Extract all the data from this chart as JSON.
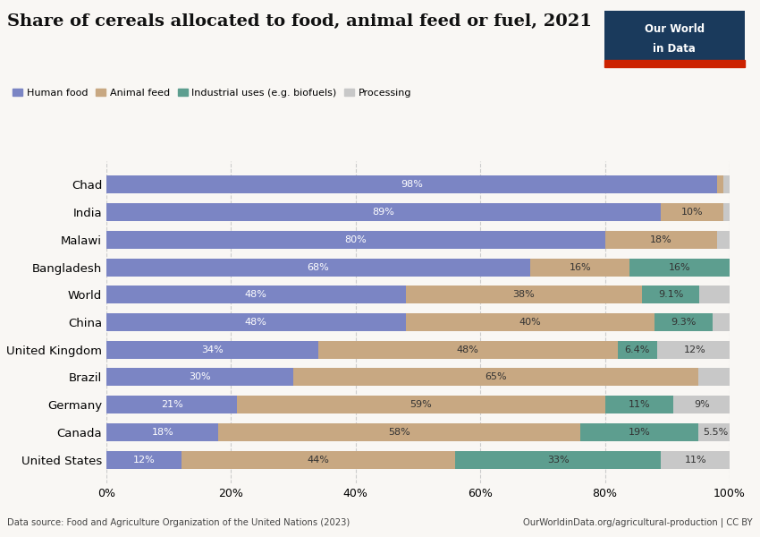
{
  "title": "Share of cereals allocated to food, animal feed or fuel, 2021",
  "categories": [
    "Chad",
    "India",
    "Malawi",
    "Bangladesh",
    "World",
    "China",
    "United Kingdom",
    "Brazil",
    "Germany",
    "Canada",
    "United States"
  ],
  "human_food": [
    98,
    89,
    80,
    68,
    48,
    48,
    34,
    30,
    21,
    18,
    12
  ],
  "animal_feed": [
    1,
    10,
    18,
    16,
    38,
    40,
    48,
    65,
    59,
    58,
    44
  ],
  "industrial": [
    0,
    0,
    0,
    16,
    9.1,
    9.3,
    6.4,
    0,
    11,
    19,
    33
  ],
  "processing": [
    1,
    1,
    2,
    0,
    4.9,
    2.7,
    12,
    5,
    9,
    5.5,
    11
  ],
  "labels_food": [
    "98%",
    "89%",
    "80%",
    "68%",
    "48%",
    "48%",
    "34%",
    "30%",
    "21%",
    "18%",
    "12%"
  ],
  "labels_feed": [
    "",
    "10%",
    "18%",
    "16%",
    "38%",
    "40%",
    "48%",
    "65%",
    "59%",
    "58%",
    "44%"
  ],
  "labels_ind": [
    "",
    "",
    "",
    "16%",
    "9.1%",
    "9.3%",
    "6.4%",
    "",
    "11%",
    "19%",
    "33%"
  ],
  "labels_proc": [
    "",
    "",
    "",
    "",
    "",
    "",
    "12%",
    "",
    "9%",
    "5.5%",
    "11%"
  ],
  "color_food": "#7b85c4",
  "color_feed": "#c8a882",
  "color_ind": "#5d9e8f",
  "color_proc": "#c8c8c8",
  "background": "#f9f7f4",
  "grid_color": "#cccccc",
  "datasource": "Data source: Food and Agriculture Organization of the United Nations (2023)",
  "url": "OurWorldinData.org/agricultural-production | CC BY",
  "logo_bg": "#1a3a5c",
  "logo_stripe": "#cc2200"
}
